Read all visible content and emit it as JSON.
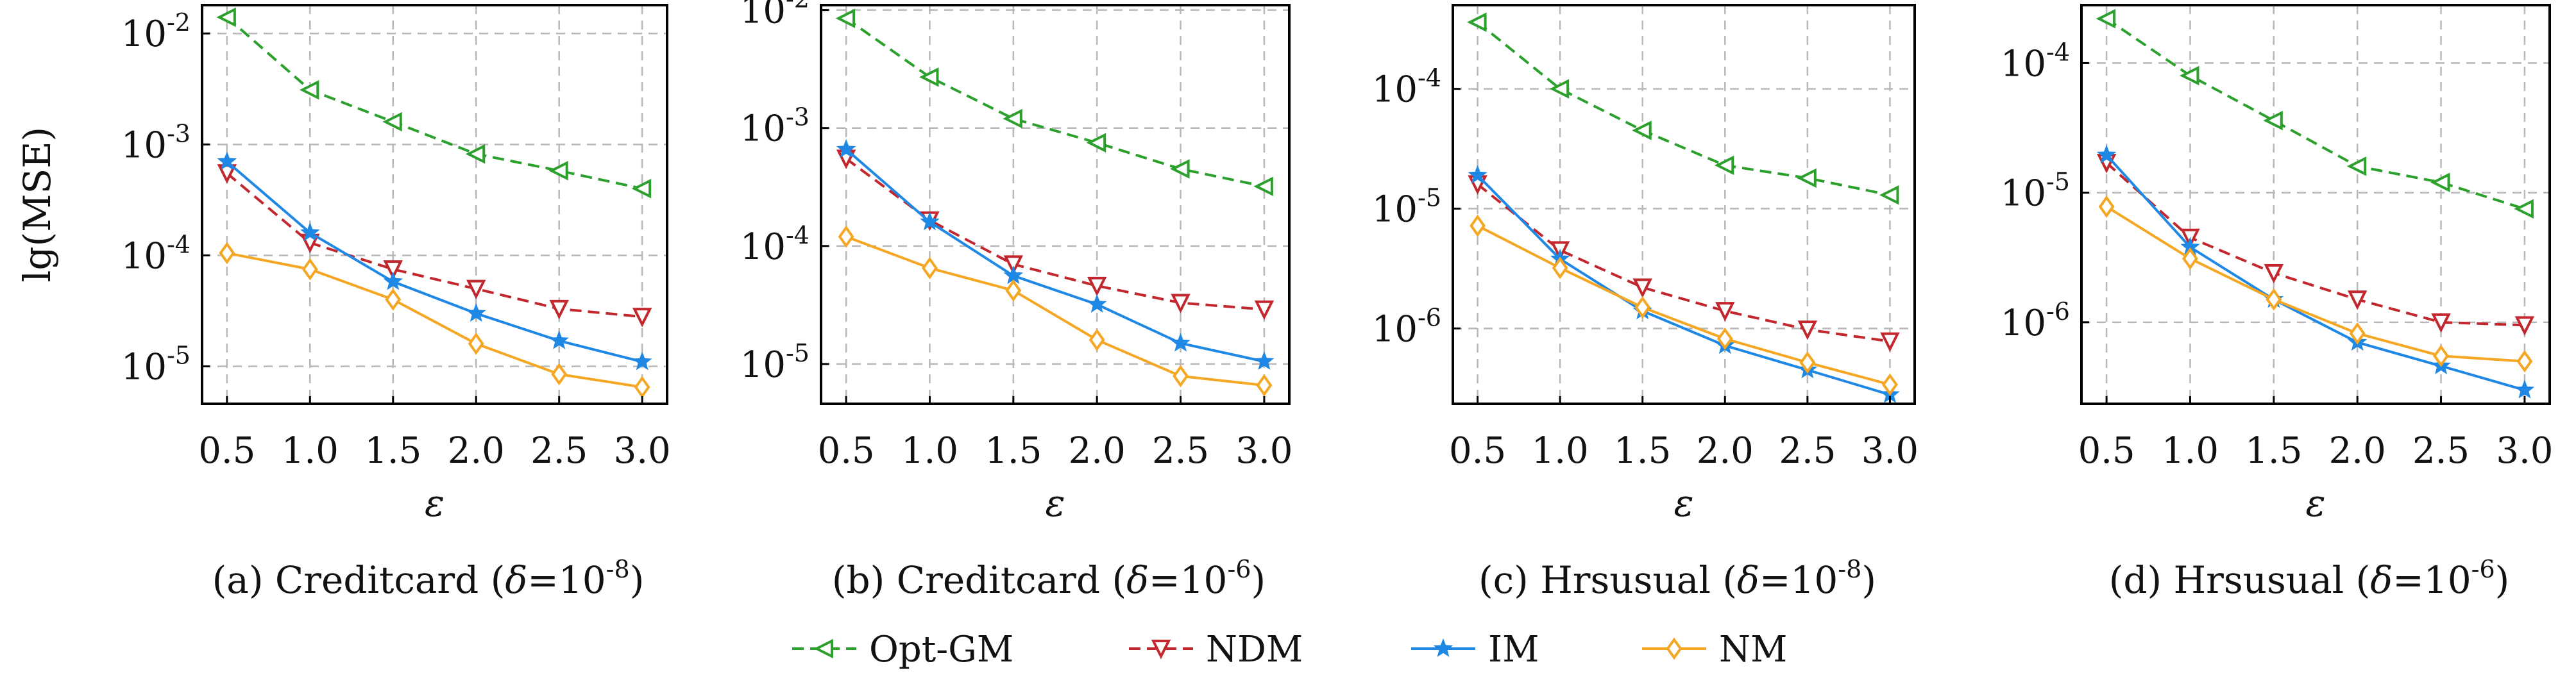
{
  "legend": [
    {
      "name": "Opt-GM",
      "color": "#2ca02c",
      "dash": "dashed",
      "marker": "triangle-left"
    },
    {
      "name": "NDM",
      "color": "#c1272d",
      "dash": "dashed",
      "marker": "triangle-down"
    },
    {
      "name": "IM",
      "color": "#1f88e5",
      "dash": "solid",
      "marker": "star"
    },
    {
      "name": "NM",
      "color": "#f5a623",
      "dash": "solid",
      "marker": "diamond"
    }
  ],
  "chart_data": [
    {
      "type": "line",
      "caption": {
        "prefix": "(a) Creditcard (",
        "delta_symbol": "δ",
        "delta_base": "=10",
        "delta_exp": "-8",
        "suffix": ")"
      },
      "ylabel": "lg(MSE)",
      "xlabel": "ε",
      "y_scale": "log",
      "ylim": [
        4.6e-06,
        0.018
      ],
      "xlim": [
        0.35,
        3.15
      ],
      "x": [
        0.5,
        1.0,
        1.5,
        2.0,
        2.5,
        3.0
      ],
      "x_tick_labels": [
        "0.5",
        "1.0",
        "1.5",
        "2.0",
        "2.5",
        "3.0"
      ],
      "y_ticks": [
        1e-05,
        0.0001,
        0.001,
        0.01
      ],
      "y_tick_labels": [
        {
          "base": "10",
          "exp": "-5"
        },
        {
          "base": "10",
          "exp": "-4"
        },
        {
          "base": "10",
          "exp": "-3"
        },
        {
          "base": "10",
          "exp": "-2"
        }
      ],
      "grid": true,
      "series": [
        {
          "name": "Opt-GM",
          "values": [
            0.014,
            0.0031,
            0.0016,
            0.00082,
            0.00058,
            0.0004
          ]
        },
        {
          "name": "NDM",
          "values": [
            0.00055,
            0.00013,
            7.5e-05,
            5e-05,
            3.3e-05,
            2.8e-05
          ]
        },
        {
          "name": "IM",
          "values": [
            0.0007,
            0.00016,
            5.8e-05,
            3e-05,
            1.7e-05,
            1.1e-05
          ]
        },
        {
          "name": "NM",
          "values": [
            0.000105,
            7.5e-05,
            4e-05,
            1.6e-05,
            8.5e-06,
            6.5e-06
          ]
        }
      ]
    },
    {
      "type": "line",
      "caption": {
        "prefix": "(b) Creditcard (",
        "delta_symbol": "δ",
        "delta_base": "=10",
        "delta_exp": "-6",
        "suffix": ")"
      },
      "ylabel": "",
      "xlabel": "ε",
      "y_scale": "log",
      "ylim": [
        4.6e-06,
        0.011
      ],
      "xlim": [
        0.35,
        3.15
      ],
      "x": [
        0.5,
        1.0,
        1.5,
        2.0,
        2.5,
        3.0
      ],
      "x_tick_labels": [
        "0.5",
        "1.0",
        "1.5",
        "2.0",
        "2.5",
        "3.0"
      ],
      "y_ticks": [
        1e-05,
        0.0001,
        0.001,
        0.01
      ],
      "y_tick_labels": [
        {
          "base": "10",
          "exp": "-5"
        },
        {
          "base": "10",
          "exp": "-4"
        },
        {
          "base": "10",
          "exp": "-3"
        },
        {
          "base": "10",
          "exp": "-2"
        }
      ],
      "grid": true,
      "series": [
        {
          "name": "Opt-GM",
          "values": [
            0.0085,
            0.0027,
            0.0012,
            0.00075,
            0.00045,
            0.00032
          ]
        },
        {
          "name": "NDM",
          "values": [
            0.00055,
            0.000165,
            7e-05,
            4.6e-05,
            3.3e-05,
            2.9e-05
          ]
        },
        {
          "name": "IM",
          "values": [
            0.00066,
            0.00016,
            5.6e-05,
            3.2e-05,
            1.5e-05,
            1.05e-05
          ]
        },
        {
          "name": "NM",
          "values": [
            0.00012,
            6.5e-05,
            4.2e-05,
            1.6e-05,
            7.9e-06,
            6.6e-06
          ]
        }
      ]
    },
    {
      "type": "line",
      "caption": {
        "prefix": "(c) Hrsusual (",
        "delta_symbol": "δ",
        "delta_base": "=10",
        "delta_exp": "-8",
        "suffix": ")"
      },
      "ylabel": "",
      "xlabel": "ε",
      "y_scale": "log",
      "ylim": [
        2.35e-07,
        0.0005
      ],
      "xlim": [
        0.35,
        3.15
      ],
      "x": [
        0.5,
        1.0,
        1.5,
        2.0,
        2.5,
        3.0
      ],
      "x_tick_labels": [
        "0.5",
        "1.0",
        "1.5",
        "2.0",
        "2.5",
        "3.0"
      ],
      "y_ticks": [
        1e-06,
        1e-05,
        0.0001
      ],
      "y_tick_labels": [
        {
          "base": "10",
          "exp": "-6"
        },
        {
          "base": "10",
          "exp": "-5"
        },
        {
          "base": "10",
          "exp": "-4"
        }
      ],
      "grid": true,
      "series": [
        {
          "name": "Opt-GM",
          "values": [
            0.00036,
            0.0001,
            4.5e-05,
            2.3e-05,
            1.8e-05,
            1.3e-05
          ]
        },
        {
          "name": "NDM",
          "values": [
            1.6e-05,
            4.5e-06,
            2.2e-06,
            1.4e-06,
            9.8e-07,
            7.8e-07
          ]
        },
        {
          "name": "IM",
          "values": [
            1.9e-05,
            3.8e-06,
            1.4e-06,
            7.2e-07,
            4.5e-07,
            2.8e-07
          ]
        },
        {
          "name": "NM",
          "values": [
            7.2e-06,
            3.2e-06,
            1.5e-06,
            8.2e-07,
            5.2e-07,
            3.4e-07
          ]
        }
      ]
    },
    {
      "type": "line",
      "caption": {
        "prefix": "(d) Hrsusual (",
        "delta_symbol": "δ",
        "delta_base": "=10",
        "delta_exp": "-6",
        "suffix": ")"
      },
      "ylabel": "",
      "xlabel": "ε",
      "y_scale": "log",
      "ylim": [
        2.35e-07,
        0.00028
      ],
      "xlim": [
        0.35,
        3.15
      ],
      "x": [
        0.5,
        1.0,
        1.5,
        2.0,
        2.5,
        3.0
      ],
      "x_tick_labels": [
        "0.5",
        "1.0",
        "1.5",
        "2.0",
        "2.5",
        "3.0"
      ],
      "y_ticks": [
        1e-06,
        1e-05,
        0.0001
      ],
      "y_tick_labels": [
        {
          "base": "10",
          "exp": "-6"
        },
        {
          "base": "10",
          "exp": "-5"
        },
        {
          "base": "10",
          "exp": "-4"
        }
      ],
      "grid": true,
      "series": [
        {
          "name": "Opt-GM",
          "values": [
            0.00022,
            8e-05,
            3.6e-05,
            1.6e-05,
            1.2e-05,
            7.5e-06
          ]
        },
        {
          "name": "NDM",
          "values": [
            1.7e-05,
            4.5e-06,
            2.4e-06,
            1.5e-06,
            1e-06,
            9.5e-07
          ]
        },
        {
          "name": "IM",
          "values": [
            1.95e-05,
            3.8e-06,
            1.5e-06,
            7e-07,
            4.6e-07,
            3e-07
          ]
        },
        {
          "name": "NM",
          "values": [
            7.8e-06,
            3.1e-06,
            1.5e-06,
            8.2e-07,
            5.5e-07,
            5e-07
          ]
        }
      ]
    }
  ]
}
